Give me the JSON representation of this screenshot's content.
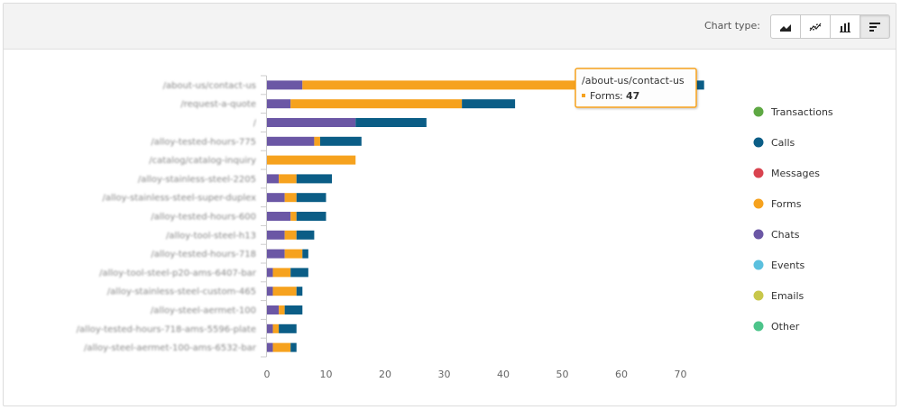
{
  "toolbar": {
    "chart_type_label": "Chart type:",
    "chart_types": [
      {
        "name": "area",
        "icon": "area-chart-icon",
        "active": false
      },
      {
        "name": "line",
        "icon": "line-chart-icon",
        "active": false
      },
      {
        "name": "column",
        "icon": "column-chart-icon",
        "active": false
      },
      {
        "name": "bar",
        "icon": "bar-chart-icon",
        "active": true
      }
    ]
  },
  "chart_data": {
    "type": "bar",
    "orientation": "horizontal",
    "stacked": true,
    "categories": [
      "/about-us/contact-us",
      "/request-a-quote",
      "/",
      "/alloy-tested-hours-775",
      "/catalog/catalog-inquiry",
      "/alloy-stainless-steel-2205",
      "/alloy-stainless-steel-super-duplex",
      "/alloy-tested-hours-600",
      "/alloy-tool-steel-h13",
      "/alloy-tested-hours-718",
      "/alloy-tool-steel-p20-ams-6407-bar",
      "/alloy-stainless-steel-custom-465",
      "/alloy-steel-aermet-100",
      "/alloy-tested-hours-718-ams-5596-plate",
      "/alloy-steel-aermet-100-ams-6532-bar"
    ],
    "series": [
      {
        "name": "Chats",
        "color": "#6b57a5",
        "values": [
          6,
          4,
          15,
          8,
          0,
          2,
          3,
          4,
          3,
          3,
          1,
          1,
          2,
          1,
          1
        ]
      },
      {
        "name": "Forms",
        "color": "#f6a21e",
        "values": [
          47,
          29,
          0,
          1,
          15,
          3,
          2,
          1,
          2,
          3,
          3,
          4,
          1,
          1,
          3
        ]
      },
      {
        "name": "Calls",
        "color": "#0b5d86",
        "values": [
          21,
          9,
          12,
          7,
          0,
          6,
          5,
          5,
          3,
          1,
          3,
          1,
          3,
          3,
          1
        ]
      }
    ],
    "xlim": [
      0,
      75
    ],
    "x_ticks": [
      0,
      10,
      20,
      30,
      40,
      50,
      60,
      70
    ],
    "grid": false,
    "legend_position": "right",
    "legend": [
      {
        "name": "Transactions",
        "color": "#5ea843"
      },
      {
        "name": "Calls",
        "color": "#0b5d86"
      },
      {
        "name": "Messages",
        "color": "#d9434f"
      },
      {
        "name": "Forms",
        "color": "#f6a21e"
      },
      {
        "name": "Chats",
        "color": "#6b57a5"
      },
      {
        "name": "Events",
        "color": "#5bc0de"
      },
      {
        "name": "Emails",
        "color": "#c8c74a"
      },
      {
        "name": "Other",
        "color": "#4cc48a"
      }
    ],
    "tooltip": {
      "category": "/about-us/contact-us",
      "series": "Forms",
      "label": "Forms",
      "value": "47",
      "color": "#f6a21e"
    }
  }
}
